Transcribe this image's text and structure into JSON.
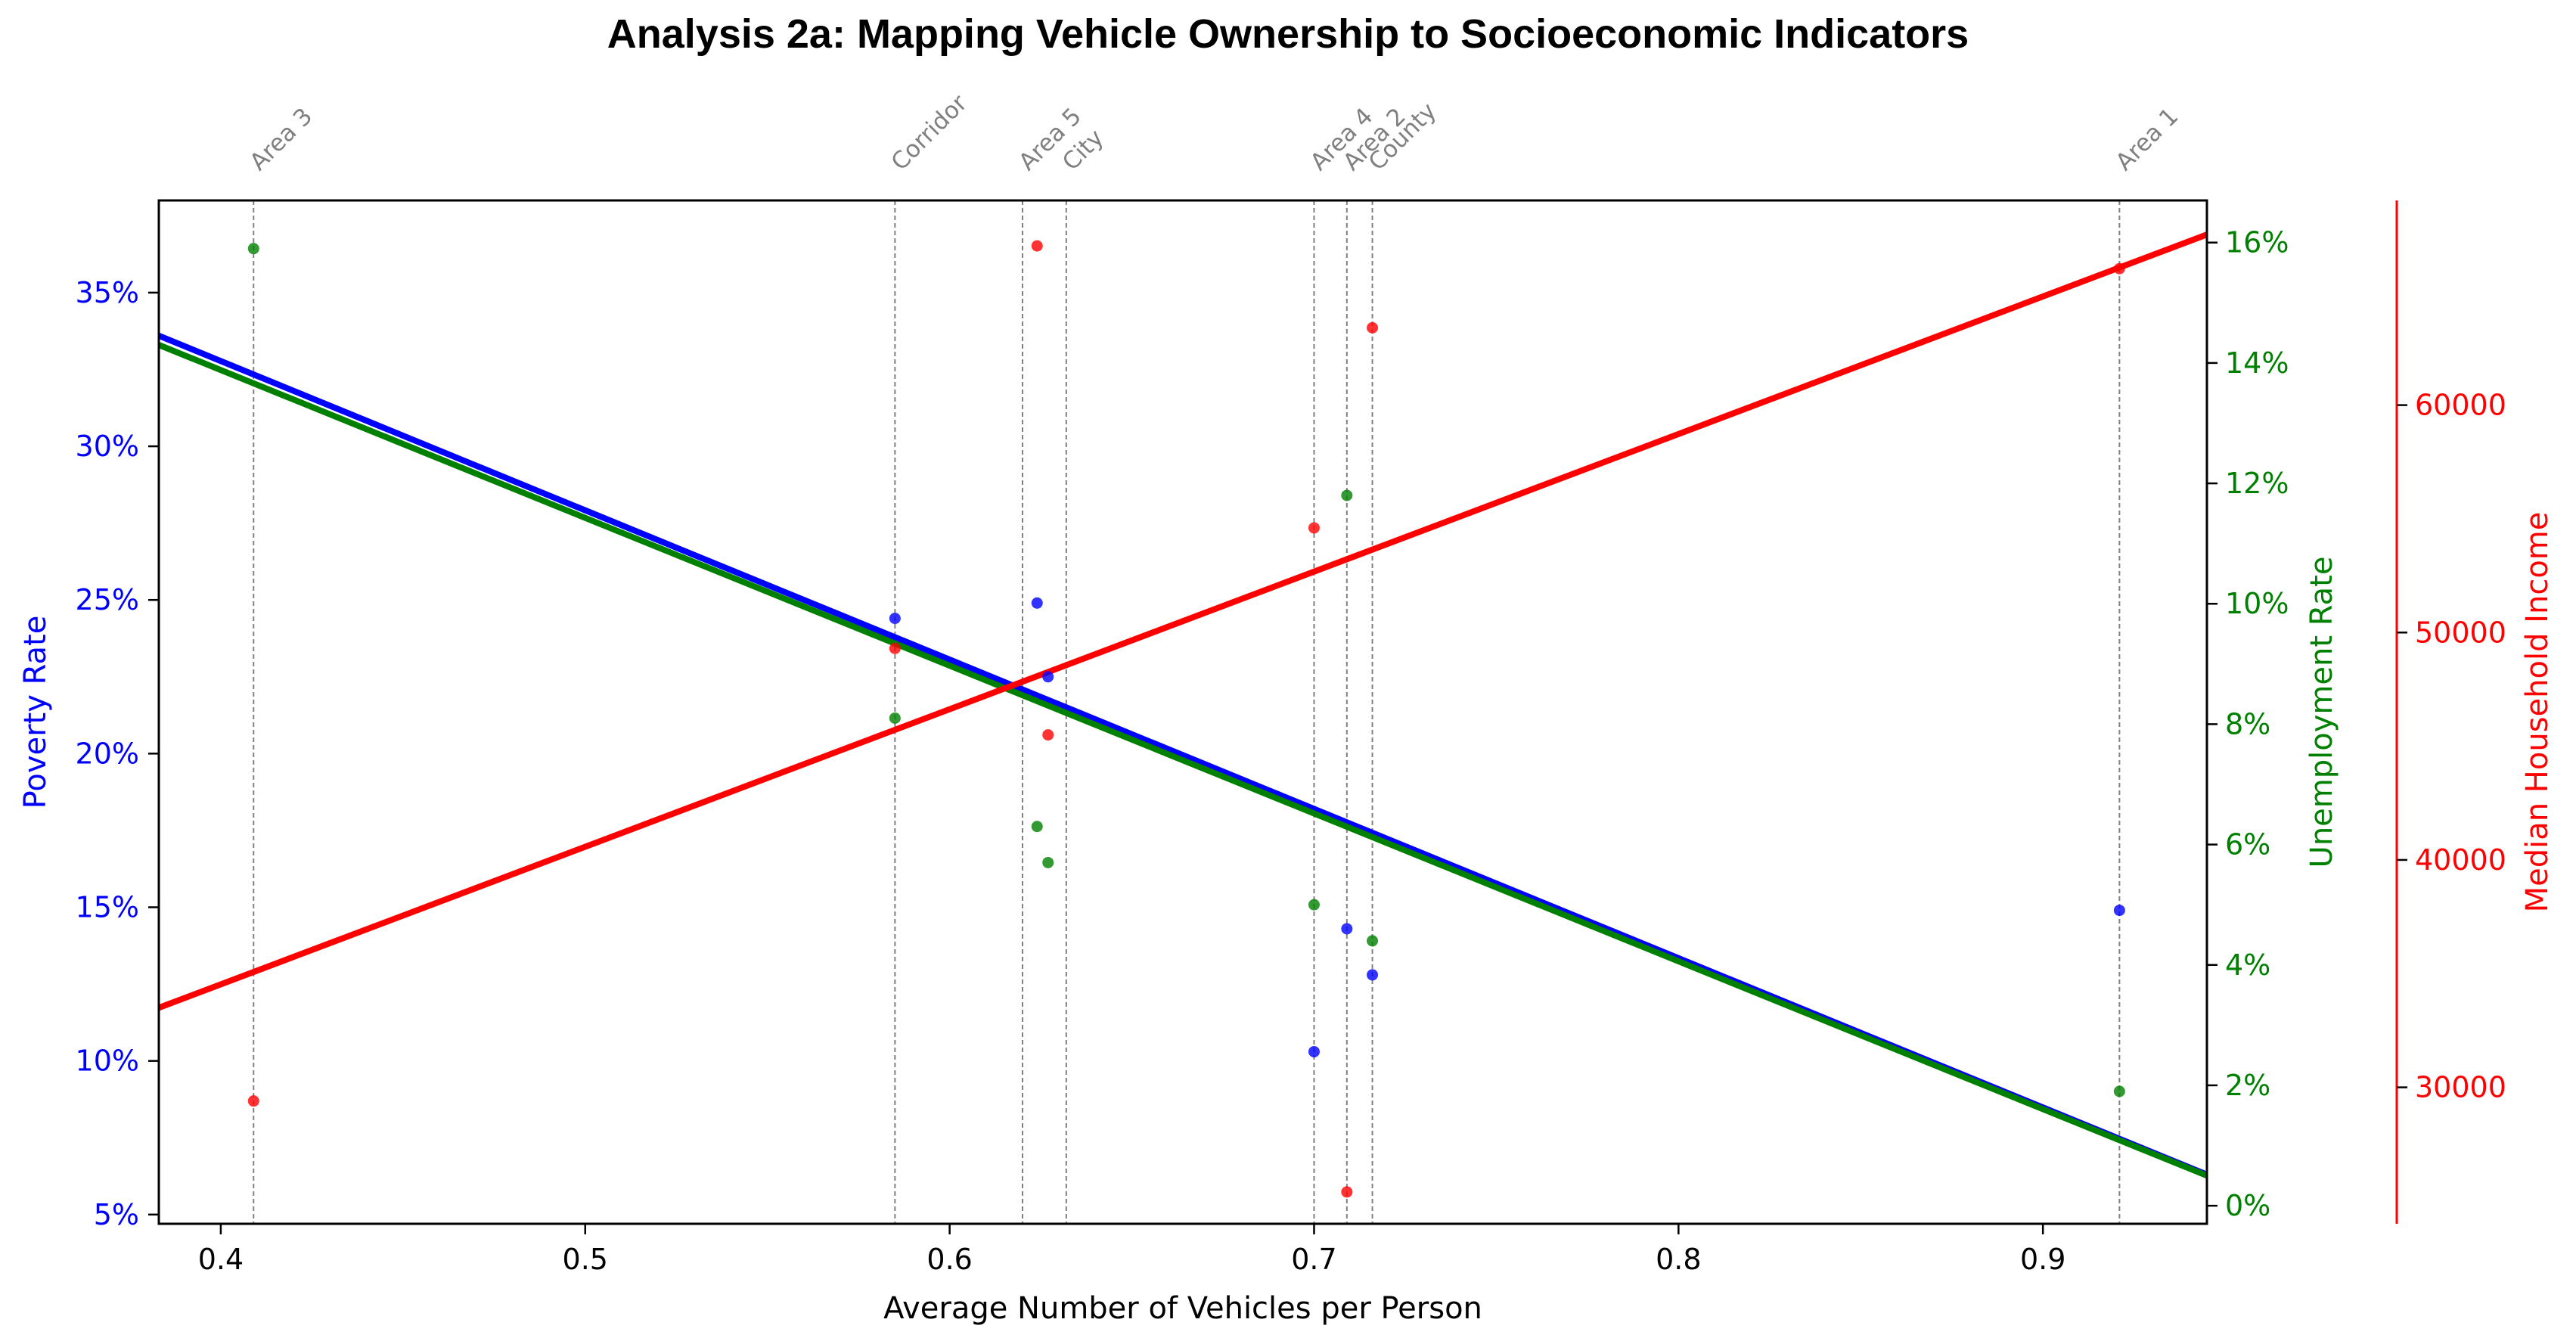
{
  "chart_data": {
    "type": "scatter",
    "title": "Analysis 2a: Mapping Vehicle Ownership to Socioeconomic Indicators",
    "xlabel": "Average Number of Vehicles per Person",
    "xlim": [
      0.383,
      0.945
    ],
    "xticks": [
      0.4,
      0.5,
      0.6,
      0.7,
      0.8,
      0.9
    ],
    "xtick_labels": [
      "0.4",
      "0.5",
      "0.6",
      "0.7",
      "0.8",
      "0.9"
    ],
    "grid": false,
    "areas": [
      {
        "name": "Area 3",
        "x": 0.409
      },
      {
        "name": "Corridor",
        "x": 0.585
      },
      {
        "name": "Area 5",
        "x": 0.62
      },
      {
        "name": "City",
        "x": 0.632
      },
      {
        "name": "Area 4",
        "x": 0.7
      },
      {
        "name": "Area 2",
        "x": 0.709
      },
      {
        "name": "County",
        "x": 0.716
      },
      {
        "name": "Area 1",
        "x": 0.921
      }
    ],
    "axes": [
      {
        "id": "poverty",
        "label": "Poverty Rate",
        "side": "left",
        "color": "#0000ff",
        "ylim": [
          4.7,
          38
        ],
        "ticks": [
          5,
          10,
          15,
          20,
          25,
          30,
          35
        ],
        "tick_labels": [
          "5%",
          "10%",
          "15%",
          "20%",
          "25%",
          "30%",
          "35%"
        ]
      },
      {
        "id": "unemployment",
        "label": "Unemployment Rate",
        "side": "right",
        "color": "#008000",
        "ylim": [
          -0.3,
          16.7
        ],
        "ticks": [
          0,
          2,
          4,
          6,
          8,
          10,
          12,
          14,
          16
        ],
        "tick_labels": [
          "0%",
          "2%",
          "4%",
          "6%",
          "8%",
          "10%",
          "12%",
          "14%",
          "16%"
        ]
      },
      {
        "id": "income",
        "label": "Median Household Income",
        "side": "right-offset",
        "color": "#ff0000",
        "ylim": [
          24000,
          69000
        ],
        "ticks": [
          30000,
          40000,
          50000,
          60000
        ],
        "tick_labels": [
          "30000",
          "40000",
          "50000",
          "60000"
        ]
      }
    ],
    "series": [
      {
        "axis": "poverty",
        "color": "#0000ff",
        "points": [
          [
            0.585,
            24.4
          ],
          [
            0.624,
            24.9
          ],
          [
            0.627,
            22.5
          ],
          [
            0.7,
            10.3
          ],
          [
            0.709,
            14.3
          ],
          [
            0.716,
            12.8
          ],
          [
            0.921,
            14.9
          ]
        ],
        "trend": [
          [
            0.383,
            33.6
          ],
          [
            0.945,
            6.3
          ]
        ]
      },
      {
        "axis": "unemployment",
        "color": "#008000",
        "points": [
          [
            0.409,
            15.9
          ],
          [
            0.585,
            8.1
          ],
          [
            0.624,
            6.3
          ],
          [
            0.627,
            5.7
          ],
          [
            0.7,
            5.0
          ],
          [
            0.709,
            11.8
          ],
          [
            0.716,
            4.4
          ],
          [
            0.921,
            1.9
          ]
        ],
        "trend": [
          [
            0.383,
            14.3
          ],
          [
            0.945,
            0.5
          ]
        ]
      },
      {
        "axis": "income",
        "color": "#ff0000",
        "points": [
          [
            0.409,
            29400
          ],
          [
            0.585,
            49300
          ],
          [
            0.624,
            67000
          ],
          [
            0.627,
            45500
          ],
          [
            0.7,
            54600
          ],
          [
            0.709,
            25400
          ],
          [
            0.716,
            63400
          ],
          [
            0.921,
            66000
          ]
        ],
        "trend": [
          [
            0.383,
            33500
          ],
          [
            0.945,
            67500
          ]
        ]
      }
    ]
  }
}
